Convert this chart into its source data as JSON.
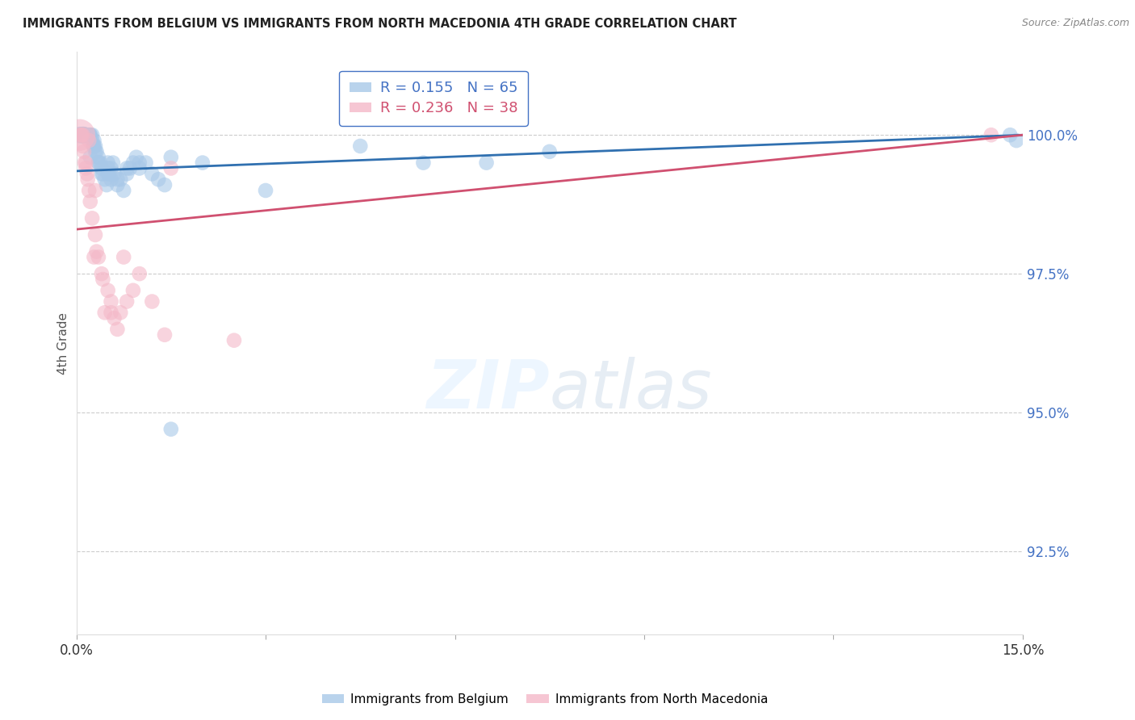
{
  "title": "IMMIGRANTS FROM BELGIUM VS IMMIGRANTS FROM NORTH MACEDONIA 4TH GRADE CORRELATION CHART",
  "source": "Source: ZipAtlas.com",
  "ylabel": "4th Grade",
  "yticks": [
    92.5,
    95.0,
    97.5,
    100.0
  ],
  "ytick_labels": [
    "92.5%",
    "95.0%",
    "97.5%",
    "100.0%"
  ],
  "xlim": [
    0.0,
    15.0
  ],
  "ylim": [
    91.0,
    101.5
  ],
  "blue_color": "#a8c8e8",
  "pink_color": "#f4b8c8",
  "blue_line_color": "#3070b0",
  "pink_line_color": "#d05070",
  "blue_R": 0.155,
  "blue_N": 65,
  "pink_R": 0.236,
  "pink_N": 38,
  "blue_label": "Immigrants from Belgium",
  "pink_label": "Immigrants from North Macedonia",
  "blue_x": [
    0.05,
    0.08,
    0.1,
    0.1,
    0.12,
    0.12,
    0.15,
    0.15,
    0.17,
    0.18,
    0.2,
    0.2,
    0.22,
    0.22,
    0.25,
    0.25,
    0.27,
    0.28,
    0.28,
    0.3,
    0.3,
    0.32,
    0.35,
    0.35,
    0.38,
    0.4,
    0.4,
    0.42,
    0.45,
    0.48,
    0.5,
    0.5,
    0.52,
    0.55,
    0.55,
    0.58,
    0.6,
    0.65,
    0.7,
    0.75,
    0.8,
    0.85,
    0.9,
    0.95,
    1.0,
    1.1,
    1.2,
    1.3,
    1.4,
    1.5,
    2.0,
    3.0,
    4.5,
    5.5,
    6.5,
    7.5,
    0.22,
    0.35,
    0.5,
    0.65,
    0.8,
    1.0,
    1.5,
    14.8,
    14.9
  ],
  "blue_y": [
    100.0,
    100.0,
    100.0,
    100.0,
    100.0,
    100.0,
    100.0,
    100.0,
    100.0,
    100.0,
    100.0,
    100.0,
    100.0,
    100.0,
    100.0,
    99.9,
    99.8,
    99.8,
    99.9,
    99.7,
    99.8,
    99.7,
    99.5,
    99.6,
    99.5,
    99.3,
    99.4,
    99.3,
    99.2,
    99.1,
    99.4,
    99.5,
    99.3,
    99.2,
    99.4,
    99.5,
    99.3,
    99.1,
    99.2,
    99.0,
    99.3,
    99.4,
    99.5,
    99.6,
    99.4,
    99.5,
    99.3,
    99.2,
    99.1,
    94.7,
    99.5,
    99.0,
    99.8,
    99.5,
    99.5,
    99.7,
    99.6,
    99.5,
    99.3,
    99.2,
    99.4,
    99.5,
    99.6,
    100.0,
    99.9
  ],
  "pink_x": [
    0.05,
    0.07,
    0.08,
    0.1,
    0.1,
    0.12,
    0.13,
    0.15,
    0.15,
    0.17,
    0.18,
    0.2,
    0.22,
    0.25,
    0.28,
    0.3,
    0.32,
    0.35,
    0.4,
    0.45,
    0.5,
    0.55,
    0.6,
    0.65,
    0.7,
    0.8,
    0.9,
    1.0,
    1.2,
    1.4,
    0.2,
    0.3,
    0.42,
    0.55,
    0.75,
    1.5,
    2.5,
    14.5
  ],
  "pink_y": [
    100.0,
    100.0,
    100.0,
    100.0,
    99.8,
    99.7,
    99.5,
    99.4,
    99.5,
    99.3,
    99.2,
    99.0,
    98.8,
    98.5,
    97.8,
    98.2,
    97.9,
    97.8,
    97.5,
    96.8,
    97.2,
    97.0,
    96.7,
    96.5,
    96.8,
    97.0,
    97.2,
    97.5,
    97.0,
    96.4,
    99.9,
    99.0,
    97.4,
    96.8,
    97.8,
    99.4,
    96.3,
    100.0
  ],
  "blue_line_x0": 0.0,
  "blue_line_y0": 99.35,
  "blue_line_x1": 15.0,
  "blue_line_y1": 100.0,
  "pink_line_x0": 0.0,
  "pink_line_y0": 98.3,
  "pink_line_x1": 15.0,
  "pink_line_y1": 100.0
}
